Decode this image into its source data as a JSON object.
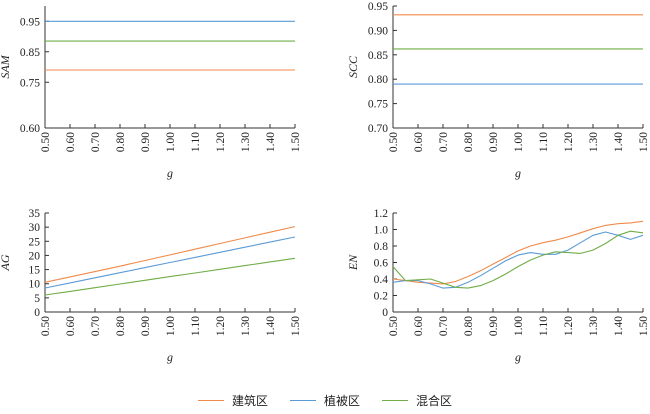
{
  "colors": {
    "建筑区": "#F08A4B",
    "植被区": "#5B9BD5",
    "混合区": "#70AD47"
  },
  "legend": [
    {
      "label": "建筑区",
      "color": "#F08A4B"
    },
    {
      "label": "植被区",
      "color": "#5B9BD5"
    },
    {
      "label": "混合区",
      "color": "#70AD47"
    }
  ],
  "chart_data": [
    {
      "type": "line",
      "ylabel": "SAM",
      "xlabel": "g",
      "xlim": [
        0.5,
        1.5
      ],
      "ylim": [
        0.6,
        1.0
      ],
      "xticks": [
        "0.50",
        "0.60",
        "0.70",
        "0.80",
        "0.90",
        "1.00",
        "1.10",
        "1.20",
        "1.30",
        "1.40",
        "1.50"
      ],
      "yticks": [
        "0.60",
        "0.75",
        "0.85",
        "0.95"
      ],
      "ytick_values": [
        0.6,
        0.75,
        0.85,
        0.95
      ],
      "x": [
        0.5,
        1.5
      ],
      "series": [
        {
          "name": "建筑区",
          "values": [
            0.79,
            0.79
          ]
        },
        {
          "name": "植被区",
          "values": [
            0.95,
            0.95
          ]
        },
        {
          "name": "混合区",
          "values": [
            0.885,
            0.885
          ]
        }
      ]
    },
    {
      "type": "line",
      "ylabel": "SCC",
      "xlabel": "g",
      "xlim": [
        0.5,
        1.5
      ],
      "ylim": [
        0.7,
        0.95
      ],
      "xticks": [
        "0.50",
        "0.60",
        "0.70",
        "0.80",
        "0.90",
        "1.00",
        "1.10",
        "1.20",
        "1.30",
        "1.40",
        "1.50"
      ],
      "yticks": [
        "0.70",
        "0.75",
        "0.80",
        "0.85",
        "0.90",
        "0.95"
      ],
      "ytick_values": [
        0.7,
        0.75,
        0.8,
        0.85,
        0.9,
        0.95
      ],
      "x": [
        0.5,
        1.5
      ],
      "series": [
        {
          "name": "建筑区",
          "values": [
            0.932,
            0.932
          ]
        },
        {
          "name": "植被区",
          "values": [
            0.79,
            0.79
          ]
        },
        {
          "name": "混合区",
          "values": [
            0.862,
            0.862
          ]
        }
      ]
    },
    {
      "type": "line",
      "ylabel": "AG",
      "xlabel": "g",
      "xlim": [
        0.5,
        1.5
      ],
      "ylim": [
        0,
        35
      ],
      "xticks": [
        "0.50",
        "0.60",
        "0.70",
        "0.80",
        "0.90",
        "1.00",
        "1.10",
        "1.20",
        "1.30",
        "1.40",
        "1.50"
      ],
      "yticks": [
        "0",
        "5",
        "10",
        "15",
        "20",
        "25",
        "30",
        "35"
      ],
      "ytick_values": [
        0,
        5,
        10,
        15,
        20,
        25,
        30,
        35
      ],
      "x": [
        0.5,
        0.6,
        0.7,
        0.8,
        0.9,
        1.0,
        1.1,
        1.2,
        1.3,
        1.4,
        1.5
      ],
      "series": [
        {
          "name": "建筑区",
          "values": [
            10.5,
            12.4,
            14.3,
            16.2,
            18.2,
            20.2,
            22.2,
            24.2,
            26.2,
            28.2,
            30.2
          ]
        },
        {
          "name": "植被区",
          "values": [
            8.5,
            10.3,
            12.1,
            13.9,
            15.7,
            17.5,
            19.3,
            21.1,
            22.9,
            24.7,
            26.5
          ]
        },
        {
          "name": "混合区",
          "values": [
            6.0,
            7.3,
            8.6,
            9.9,
            11.2,
            12.5,
            13.8,
            15.1,
            16.4,
            17.7,
            19.0
          ]
        }
      ]
    },
    {
      "type": "line",
      "ylabel": "EN",
      "xlabel": "g",
      "xlim": [
        0.5,
        1.5
      ],
      "ylim": [
        0,
        1.2
      ],
      "xticks": [
        "0.50",
        "0.60",
        "0.70",
        "0.80",
        "0.90",
        "1.00",
        "1.10",
        "1.20",
        "1.30",
        "1.40",
        "1.50"
      ],
      "yticks": [
        "0",
        "0.2",
        "0.4",
        "0.6",
        "0.8",
        "1.0",
        "1.2"
      ],
      "ytick_values": [
        0,
        0.2,
        0.4,
        0.6,
        0.8,
        1.0,
        1.2
      ],
      "x": [
        0.5,
        0.55,
        0.6,
        0.65,
        0.7,
        0.75,
        0.8,
        0.85,
        0.9,
        0.95,
        1.0,
        1.05,
        1.1,
        1.15,
        1.2,
        1.25,
        1.3,
        1.35,
        1.4,
        1.45,
        1.5
      ],
      "series": [
        {
          "name": "建筑区",
          "values": [
            0.4,
            0.38,
            0.36,
            0.35,
            0.34,
            0.37,
            0.43,
            0.5,
            0.58,
            0.66,
            0.74,
            0.8,
            0.84,
            0.87,
            0.91,
            0.96,
            1.01,
            1.05,
            1.07,
            1.08,
            1.1
          ]
        },
        {
          "name": "植被区",
          "values": [
            0.36,
            0.38,
            0.38,
            0.34,
            0.29,
            0.3,
            0.36,
            0.44,
            0.53,
            0.62,
            0.69,
            0.72,
            0.7,
            0.7,
            0.75,
            0.84,
            0.93,
            0.97,
            0.93,
            0.88,
            0.93
          ]
        },
        {
          "name": "混合区",
          "values": [
            0.55,
            0.38,
            0.39,
            0.4,
            0.35,
            0.3,
            0.29,
            0.32,
            0.38,
            0.46,
            0.55,
            0.63,
            0.69,
            0.73,
            0.72,
            0.71,
            0.75,
            0.83,
            0.93,
            0.98,
            0.96
          ]
        }
      ]
    }
  ]
}
